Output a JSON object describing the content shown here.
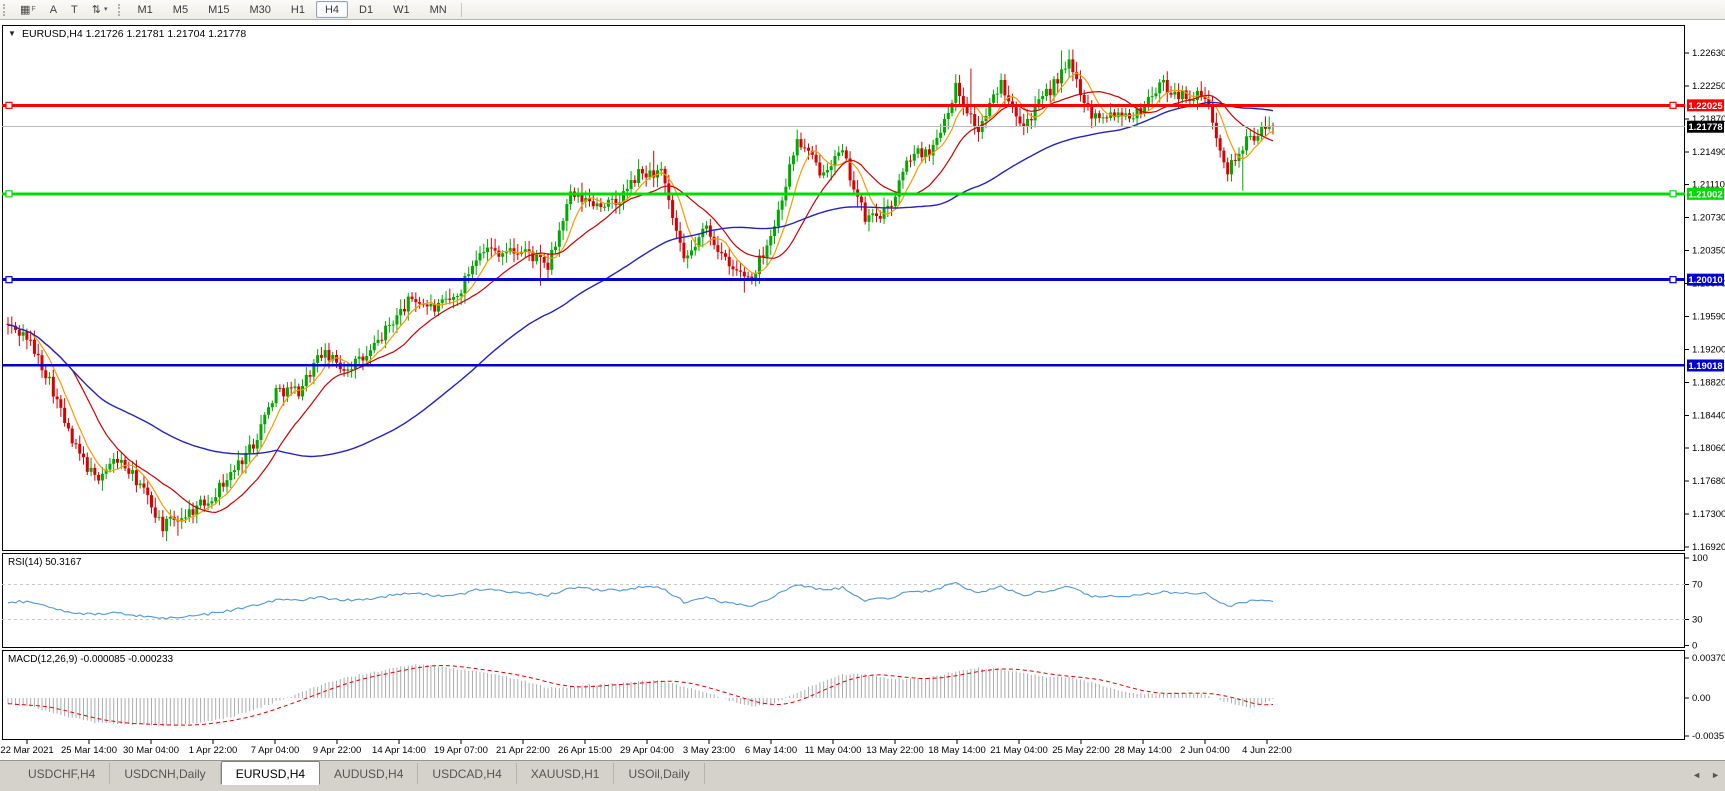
{
  "toolbar": {
    "tools": [
      {
        "name": "grid-tool-icon",
        "glyph": "▦",
        "suffix": "F"
      },
      {
        "name": "cursor-tool-icon",
        "glyph": "A",
        "suffix": ""
      },
      {
        "name": "text-tool-icon",
        "glyph": "T",
        "suffix": ""
      },
      {
        "name": "arrows-tool-icon",
        "glyph": "⇅",
        "suffix": "",
        "caret": "▾"
      }
    ],
    "timeframes": [
      "M1",
      "M5",
      "M15",
      "M30",
      "H1",
      "H4",
      "D1",
      "W1",
      "MN"
    ],
    "active_timeframe": "H4"
  },
  "symbol_header": {
    "collapse_glyph": "▼",
    "text": "EURUSD,H4  1.21726 1.21781 1.21704 1.21778"
  },
  "chart_data": [
    {
      "type": "candlestick",
      "symbol": "EURUSD",
      "timeframe": "H4",
      "ohlc_current": {
        "open": 1.21726,
        "high": 1.21781,
        "low": 1.21704,
        "close": 1.21778
      },
      "y_range": {
        "top": 1.2263,
        "bottom": 1.1692
      },
      "y_ticks": [
        "1.22630",
        "1.22250",
        "1.21870",
        "1.21490",
        "1.21110",
        "1.20730",
        "1.20350",
        "1.19970",
        "1.19590",
        "1.19200",
        "1.18820",
        "1.18440",
        "1.18060",
        "1.17680",
        "1.17300",
        "1.16920"
      ],
      "up_color": "#00A800",
      "down_color": "#D80000",
      "bars_per_day": 6,
      "start_value": 1.195,
      "day_closes": [
        1.1935,
        1.1885,
        1.1812,
        1.1771,
        1.1794,
        1.1764,
        1.1716,
        1.173,
        1.1746,
        1.1776,
        1.1812,
        1.1873,
        1.1873,
        1.1916,
        1.1899,
        1.1911,
        1.1948,
        1.198,
        1.1967,
        1.1981,
        1.2038,
        1.2033,
        1.2034,
        1.2015,
        1.2098,
        1.209,
        1.2088,
        1.2123,
        1.2124,
        1.202,
        1.2062,
        1.2014,
        1.2003,
        1.2064,
        1.2163,
        1.2128,
        1.2147,
        1.2071,
        1.208,
        1.2144,
        1.2153,
        1.2223,
        1.2173,
        1.2229,
        1.218,
        1.2215,
        1.225,
        1.2191,
        1.2194,
        1.2193,
        1.2227,
        1.2214,
        1.2212,
        1.2129,
        1.2166,
        1.21778
      ],
      "day_extremes": {
        "7": {
          "low": 1.1705
        },
        "23": {
          "low": 1.1994
        },
        "28": {
          "high": 1.215
        },
        "32": {
          "low": 1.1986
        },
        "42": {
          "high": 1.2245
        },
        "46": {
          "high": 1.2266
        },
        "54": {
          "low": 1.2104
        }
      },
      "moving_averages": [
        {
          "name": "fast-ma",
          "window": 7,
          "color": "#FF9800"
        },
        {
          "name": "medium-ma",
          "window": 18,
          "color": "#CB0000"
        },
        {
          "name": "slow-ma",
          "window": 72,
          "color": "#2323BC"
        }
      ],
      "levels": [
        {
          "price": 1.22025,
          "label": "1.22025",
          "color": "#FF0000",
          "width": 3,
          "handles": true,
          "text_color": "#FFFFFF"
        },
        {
          "price": 1.21002,
          "label": "1.21002",
          "color": "#00DC00",
          "width": 3,
          "handles": true,
          "text_color": "#FFFFFF"
        },
        {
          "price": 1.2001,
          "label": "1.20010",
          "color": "#0000CF",
          "width": 3,
          "handles": true,
          "text_color": "#FFFFFF"
        },
        {
          "price": 1.19018,
          "label": "1.19018",
          "color": "#0000CF",
          "width": 2.5,
          "handles": false,
          "text_color": "#FFFFFF"
        }
      ],
      "current_price": {
        "value": 1.21778,
        "label": "1.21778",
        "line_color": "#BBBBBB",
        "label_bg": "#000000",
        "text_color": "#FFFFFF"
      }
    },
    {
      "type": "line",
      "name": "RSI",
      "label": "RSI(14) 50.3167",
      "current": 50.3167,
      "color": "#4F97D8",
      "y_ticks": [
        {
          "v": 100,
          "label": "100",
          "dashed": false
        },
        {
          "v": 70,
          "label": "70",
          "dashed": true
        },
        {
          "v": 30,
          "label": "30",
          "dashed": true
        },
        {
          "v": 0,
          "label": "0",
          "dashed": false
        }
      ],
      "day_values": [
        50,
        44,
        38,
        35,
        37,
        34,
        31,
        33,
        36,
        40,
        46,
        52,
        52,
        55,
        52,
        53,
        57,
        60,
        57,
        58,
        64,
        62,
        61,
        57,
        66,
        64,
        63,
        66,
        66,
        50,
        55,
        48,
        46,
        56,
        70,
        64,
        66,
        52,
        54,
        62,
        63,
        71,
        60,
        67,
        58,
        62,
        68,
        56,
        57,
        57,
        61,
        60,
        60,
        44,
        51,
        50.3
      ]
    },
    {
      "type": "histogram+line",
      "name": "MACD",
      "label": "MACD(12,26,9) -0.000085 -0.000233",
      "current_macd": -8.5e-05,
      "current_signal": -0.000233,
      "histogram_color": "#ABABAB",
      "signal_color": "#E00000",
      "y_ticks": [
        {
          "v": 0.003701,
          "label": "0.003701"
        },
        {
          "v": 0,
          "label": "0.00"
        },
        {
          "v": -0.003577,
          "label": "-0.003577"
        }
      ],
      "day_values": [
        -0.0007,
        -0.0012,
        -0.0018,
        -0.0022,
        -0.0023,
        -0.0024,
        -0.0025,
        -0.0024,
        -0.0021,
        -0.0017,
        -0.0011,
        -0.0003,
        0.0004,
        0.0012,
        0.0018,
        0.0022,
        0.0026,
        0.003,
        0.0029,
        0.0026,
        0.0024,
        0.002,
        0.0015,
        0.0009,
        0.001,
        0.0012,
        0.0013,
        0.0015,
        0.0016,
        0.001,
        0.0005,
        -0.0002,
        -0.0008,
        -0.0005,
        0.0005,
        0.0014,
        0.0021,
        0.0022,
        0.0018,
        0.0017,
        0.0019,
        0.0024,
        0.0027,
        0.0026,
        0.0022,
        0.0019,
        0.0019,
        0.0014,
        0.0008,
        0.0004,
        0.0004,
        0.0005,
        0.0003,
        -0.0004,
        -0.0009,
        -0.0001
      ]
    }
  ],
  "date_axis": {
    "labels": [
      "22 Mar 2021",
      "25 Mar 14:00",
      "30 Mar 04:00",
      "1 Apr 22:00",
      "7 Apr 04:00",
      "9 Apr 22:00",
      "14 Apr 14:00",
      "19 Apr 07:00",
      "21 Apr 22:00",
      "26 Apr 15:00",
      "29 Apr 04:00",
      "3 May 23:00",
      "6 May 14:00",
      "11 May 04:00",
      "13 May 22:00",
      "18 May 14:00",
      "21 May 04:00",
      "25 May 22:00",
      "28 May 14:00",
      "2 Jun 04:00",
      "4 Jun 22:00"
    ]
  },
  "tabs": {
    "items": [
      "USDCHF,H4",
      "USDCNH,Daily",
      "EURUSD,H4",
      "AUDUSD,H4",
      "USDCAD,H4",
      "XAUUSD,H1",
      "USOil,Daily"
    ],
    "active": "EURUSD,H4",
    "scroll_left_glyph": "◄",
    "scroll_right_glyph": "►"
  }
}
